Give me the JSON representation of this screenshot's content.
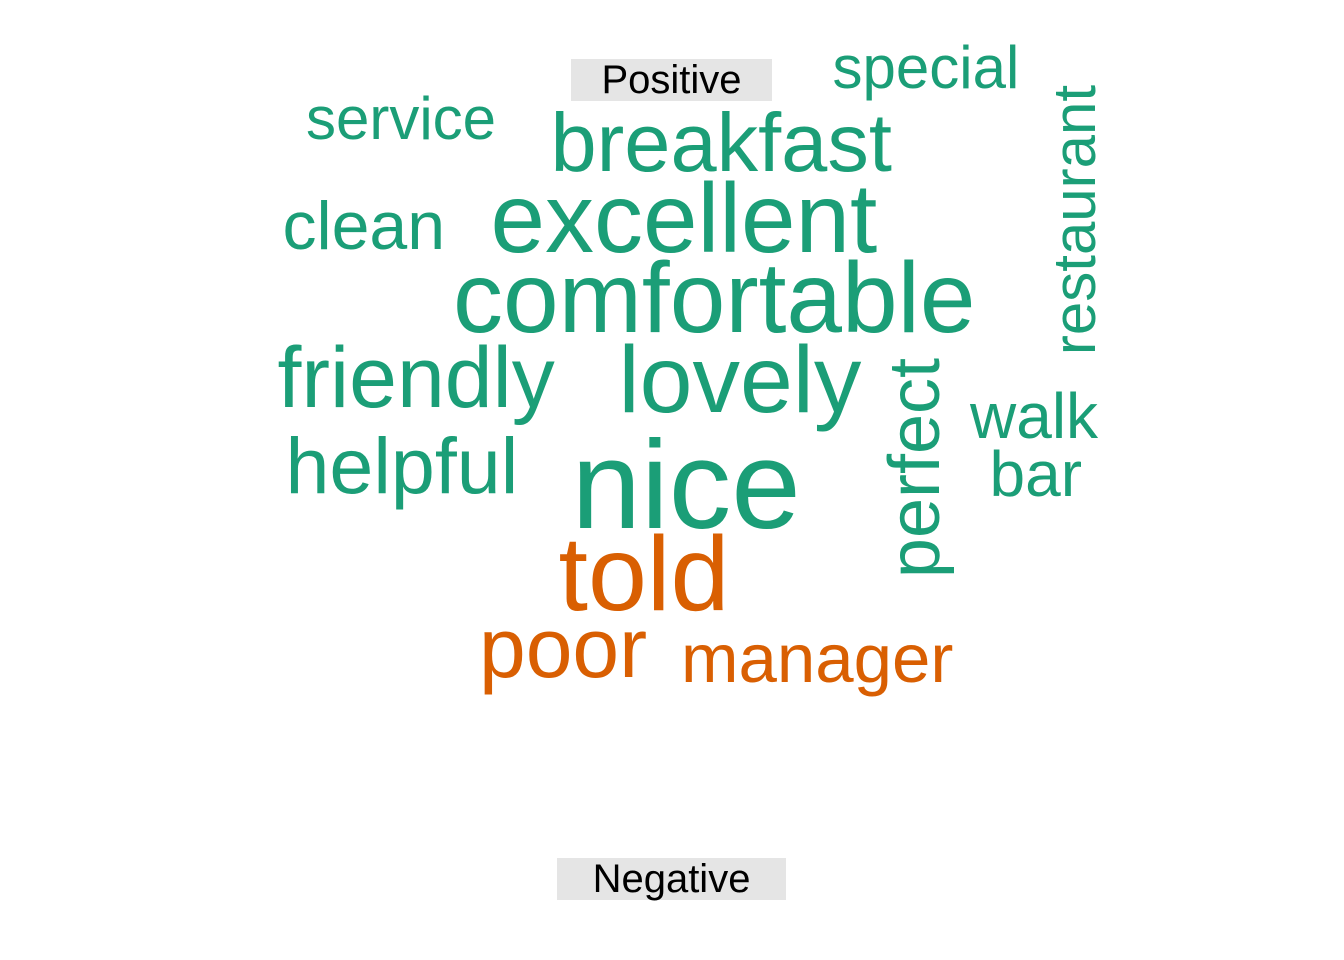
{
  "groups": {
    "positive": {
      "label": "Positive",
      "color": "#1b9e77"
    },
    "negative": {
      "label": "Negative",
      "color": "#d95f02"
    }
  },
  "words": [
    {
      "text": "special",
      "group": "positive",
      "size": 60
    },
    {
      "text": "service",
      "group": "positive",
      "size": 60
    },
    {
      "text": "breakfast",
      "group": "positive",
      "size": 83
    },
    {
      "text": "restaurant",
      "group": "positive",
      "size": 60
    },
    {
      "text": "clean",
      "group": "positive",
      "size": 68
    },
    {
      "text": "excellent",
      "group": "positive",
      "size": 98
    },
    {
      "text": "comfortable",
      "group": "positive",
      "size": 100
    },
    {
      "text": "friendly",
      "group": "positive",
      "size": 86
    },
    {
      "text": "lovely",
      "group": "positive",
      "size": 95
    },
    {
      "text": "perfect",
      "group": "positive",
      "size": 72
    },
    {
      "text": "walk",
      "group": "positive",
      "size": 64
    },
    {
      "text": "helpful",
      "group": "positive",
      "size": 79
    },
    {
      "text": "bar",
      "group": "positive",
      "size": 64
    },
    {
      "text": "nice",
      "group": "positive",
      "size": 125
    },
    {
      "text": "told",
      "group": "negative",
      "size": 106
    },
    {
      "text": "poor",
      "group": "negative",
      "size": 84
    },
    {
      "text": "manager",
      "group": "negative",
      "size": 69
    }
  ]
}
